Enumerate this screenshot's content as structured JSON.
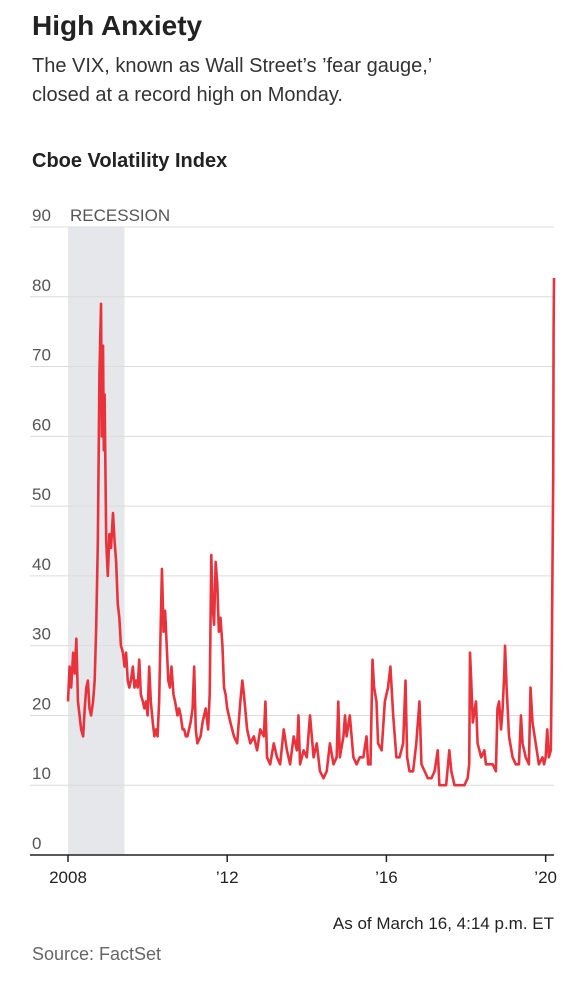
{
  "chart_data": {
    "type": "line",
    "title": "High Anxiety",
    "subtitle": "The VIX, known as Wall Street’s ’fear gauge,’ closed at a record high on Monday.",
    "chart_title": "Cboe Volatility Index",
    "note": "As of March 16, 4:14 p.m. ET",
    "source": "Source: FactSet",
    "color": "#e8333d",
    "grid": true,
    "recession": {
      "label": "RECESSION",
      "x": [
        2008,
        2009.42
      ]
    },
    "xlim": [
      2008,
      2020.21
    ],
    "xticks": [
      2008,
      {
        "value": 2012,
        "label": "’12"
      },
      {
        "value": 2016,
        "label": "’16"
      },
      {
        "value": 2020,
        "label": "’20"
      }
    ],
    "ylim": [
      0,
      90
    ],
    "yticks": [
      0,
      10,
      20,
      30,
      40,
      50,
      60,
      70,
      80,
      90
    ],
    "x": [
      2008.0,
      2008.04,
      2008.08,
      2008.13,
      2008.17,
      2008.21,
      2008.25,
      2008.29,
      2008.33,
      2008.38,
      2008.42,
      2008.46,
      2008.5,
      2008.54,
      2008.58,
      2008.63,
      2008.67,
      2008.71,
      2008.75,
      2008.79,
      2008.83,
      2008.85,
      2008.88,
      2008.9,
      2008.92,
      2008.96,
      2009.0,
      2009.04,
      2009.08,
      2009.13,
      2009.17,
      2009.21,
      2009.25,
      2009.29,
      2009.33,
      2009.38,
      2009.42,
      2009.46,
      2009.5,
      2009.54,
      2009.58,
      2009.63,
      2009.67,
      2009.71,
      2009.75,
      2009.79,
      2009.83,
      2009.88,
      2009.92,
      2009.96,
      2010.0,
      2010.04,
      2010.08,
      2010.13,
      2010.17,
      2010.21,
      2010.25,
      2010.29,
      2010.33,
      2010.36,
      2010.4,
      2010.44,
      2010.48,
      2010.52,
      2010.56,
      2010.6,
      2010.65,
      2010.69,
      2010.75,
      2010.79,
      2010.83,
      2010.88,
      2010.92,
      2010.96,
      2011.0,
      2011.08,
      2011.13,
      2011.17,
      2011.21,
      2011.25,
      2011.33,
      2011.38,
      2011.46,
      2011.52,
      2011.56,
      2011.6,
      2011.63,
      2011.67,
      2011.71,
      2011.75,
      2011.79,
      2011.83,
      2011.88,
      2011.92,
      2011.96,
      2012.0,
      2012.08,
      2012.17,
      2012.25,
      2012.33,
      2012.38,
      2012.42,
      2012.5,
      2012.58,
      2012.67,
      2012.75,
      2012.83,
      2012.92,
      2012.96,
      2013.0,
      2013.08,
      2013.17,
      2013.25,
      2013.33,
      2013.42,
      2013.5,
      2013.58,
      2013.67,
      2013.75,
      2013.79,
      2013.83,
      2013.92,
      2014.0,
      2014.08,
      2014.17,
      2014.25,
      2014.33,
      2014.42,
      2014.5,
      2014.58,
      2014.67,
      2014.75,
      2014.79,
      2014.83,
      2014.92,
      2014.96,
      2015.0,
      2015.08,
      2015.17,
      2015.25,
      2015.33,
      2015.42,
      2015.5,
      2015.54,
      2015.6,
      2015.65,
      2015.69,
      2015.75,
      2015.79,
      2015.88,
      2015.96,
      2016.04,
      2016.1,
      2016.17,
      2016.25,
      2016.33,
      2016.42,
      2016.48,
      2016.52,
      2016.58,
      2016.67,
      2016.75,
      2016.83,
      2016.88,
      2016.96,
      2017.04,
      2017.13,
      2017.21,
      2017.29,
      2017.33,
      2017.42,
      2017.5,
      2017.58,
      2017.63,
      2017.71,
      2017.79,
      2017.88,
      2017.96,
      2018.04,
      2018.08,
      2018.1,
      2018.13,
      2018.17,
      2018.25,
      2018.29,
      2018.38,
      2018.46,
      2018.5,
      2018.58,
      2018.67,
      2018.75,
      2018.79,
      2018.83,
      2018.88,
      2018.92,
      2018.96,
      2018.98,
      2019.02,
      2019.08,
      2019.17,
      2019.25,
      2019.33,
      2019.38,
      2019.42,
      2019.5,
      2019.58,
      2019.62,
      2019.67,
      2019.75,
      2019.83,
      2019.92,
      2019.96,
      2020.0,
      2020.04,
      2020.08,
      2020.13,
      2020.15,
      2020.17,
      2020.19,
      2020.2,
      2020.21
    ],
    "values": [
      22,
      27,
      24,
      29,
      26,
      31,
      22,
      20,
      18,
      17,
      21,
      24,
      25,
      21,
      20,
      22,
      25,
      33,
      45,
      69,
      79,
      60,
      73,
      58,
      66,
      45,
      40,
      46,
      44,
      49,
      45,
      42,
      36,
      34,
      30,
      29,
      27,
      29,
      25,
      24,
      25,
      27,
      24,
      25,
      24,
      28,
      23,
      22,
      21,
      22,
      20,
      27,
      22,
      19,
      17,
      18,
      17,
      22,
      33,
      41,
      32,
      35,
      30,
      25,
      24,
      27,
      23,
      22,
      20,
      21,
      20,
      18,
      18,
      17,
      17,
      19,
      21,
      27,
      18,
      16,
      17,
      19,
      21,
      18,
      23,
      43,
      36,
      33,
      42,
      39,
      32,
      34,
      30,
      24,
      23,
      21,
      19,
      17,
      16,
      22,
      25,
      23,
      18,
      16,
      17,
      15,
      18,
      17,
      22,
      14,
      13,
      16,
      14,
      13,
      18,
      15,
      13,
      17,
      15,
      20,
      13,
      15,
      14,
      20,
      14,
      16,
      12,
      11,
      12,
      16,
      13,
      14,
      22,
      14,
      17,
      20,
      17,
      20,
      14,
      13,
      14,
      14,
      17,
      13,
      13,
      28,
      24,
      22,
      16,
      15,
      22,
      24,
      27,
      20,
      14,
      14,
      16,
      25,
      14,
      12,
      12,
      16,
      22,
      13,
      12,
      11,
      11,
      12,
      15,
      10,
      10,
      10,
      15,
      12,
      10,
      10,
      10,
      10,
      11,
      13,
      29,
      25,
      19,
      22,
      16,
      14,
      15,
      13,
      13,
      13,
      12,
      21,
      22,
      18,
      21,
      26,
      30,
      24,
      17,
      14,
      13,
      13,
      20,
      16,
      14,
      13,
      24,
      19,
      16,
      13,
      14,
      13,
      14,
      18,
      14,
      15,
      25,
      40,
      54,
      75,
      82.7
    ]
  }
}
